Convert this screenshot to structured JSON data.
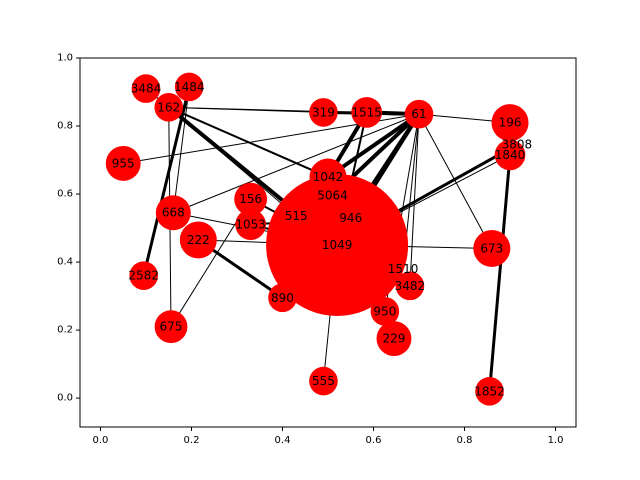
{
  "chart_data": {
    "type": "network-graph",
    "xlim": [
      -0.045,
      1.045
    ],
    "ylim": [
      -0.085,
      1.0
    ],
    "x_ticks": [
      0.0,
      0.2,
      0.4,
      0.6,
      0.8,
      1.0
    ],
    "y_ticks": [
      0.0,
      0.2,
      0.4,
      0.6,
      0.8,
      1.0
    ],
    "x_tick_labels": [
      "0.0",
      "0.2",
      "0.4",
      "0.6",
      "0.8",
      "1.0"
    ],
    "y_tick_labels": [
      "0.0",
      "0.2",
      "0.4",
      "0.6",
      "0.8",
      "1.0"
    ],
    "grid": false,
    "node_color": "#ff0000",
    "edge_color": "#000000",
    "nodes": [
      {
        "id": "1049",
        "x": 0.52,
        "y": 0.45,
        "size": 20
      },
      {
        "id": "946",
        "x": 0.55,
        "y": 0.53,
        "size": 2
      },
      {
        "id": "5064",
        "x": 0.51,
        "y": 0.595,
        "size": 2
      },
      {
        "id": "515",
        "x": 0.43,
        "y": 0.535,
        "size": 2
      },
      {
        "id": "1042",
        "x": 0.5,
        "y": 0.65,
        "size": 10
      },
      {
        "id": "61",
        "x": 0.7,
        "y": 0.835,
        "size": 6
      },
      {
        "id": "1515",
        "x": 0.585,
        "y": 0.84,
        "size": 7
      },
      {
        "id": "319",
        "x": 0.49,
        "y": 0.84,
        "size": 6
      },
      {
        "id": "196",
        "x": 0.9,
        "y": 0.81,
        "size": 10
      },
      {
        "id": "3808",
        "x": 0.915,
        "y": 0.745,
        "size": 2
      },
      {
        "id": "1840",
        "x": 0.9,
        "y": 0.715,
        "size": 7
      },
      {
        "id": "3484",
        "x": 0.1,
        "y": 0.91,
        "size": 6
      },
      {
        "id": "1484",
        "x": 0.195,
        "y": 0.915,
        "size": 6
      },
      {
        "id": "162",
        "x": 0.15,
        "y": 0.855,
        "size": 6
      },
      {
        "id": "955",
        "x": 0.05,
        "y": 0.69,
        "size": 9
      },
      {
        "id": "156",
        "x": 0.33,
        "y": 0.585,
        "size": 8
      },
      {
        "id": "1053",
        "x": 0.33,
        "y": 0.51,
        "size": 7
      },
      {
        "id": "668",
        "x": 0.16,
        "y": 0.545,
        "size": 9
      },
      {
        "id": "222",
        "x": 0.215,
        "y": 0.465,
        "size": 10
      },
      {
        "id": "2582",
        "x": 0.095,
        "y": 0.36,
        "size": 6
      },
      {
        "id": "890",
        "x": 0.4,
        "y": 0.295,
        "size": 6
      },
      {
        "id": "675",
        "x": 0.155,
        "y": 0.21,
        "size": 8
      },
      {
        "id": "555",
        "x": 0.49,
        "y": 0.05,
        "size": 6
      },
      {
        "id": "673",
        "x": 0.86,
        "y": 0.44,
        "size": 10
      },
      {
        "id": "1510",
        "x": 0.665,
        "y": 0.38,
        "size": 2
      },
      {
        "id": "3482",
        "x": 0.68,
        "y": 0.33,
        "size": 6
      },
      {
        "id": "950",
        "x": 0.625,
        "y": 0.255,
        "size": 6
      },
      {
        "id": "229",
        "x": 0.645,
        "y": 0.175,
        "size": 9
      },
      {
        "id": "1852",
        "x": 0.855,
        "y": 0.02,
        "size": 6
      }
    ],
    "edges": [
      {
        "s": "61",
        "t": "1049",
        "w": 4
      },
      {
        "s": "61",
        "t": "5064",
        "w": 4
      },
      {
        "s": "61",
        "t": "1042",
        "w": 4
      },
      {
        "s": "61",
        "t": "1515",
        "w": 4
      },
      {
        "s": "61",
        "t": "319",
        "w": 3
      },
      {
        "s": "61",
        "t": "196",
        "w": 1
      },
      {
        "s": "61",
        "t": "673",
        "w": 1
      },
      {
        "s": "61",
        "t": "3482",
        "w": 1
      },
      {
        "s": "61",
        "t": "1510",
        "w": 1
      },
      {
        "s": "61",
        "t": "950",
        "w": 1
      },
      {
        "s": "61",
        "t": "162",
        "w": 1
      },
      {
        "s": "61",
        "t": "955",
        "w": 1
      },
      {
        "s": "61",
        "t": "668",
        "w": 1
      },
      {
        "s": "61",
        "t": "946",
        "w": 4
      },
      {
        "s": "1515",
        "t": "1042",
        "w": 4
      },
      {
        "s": "1515",
        "t": "319",
        "w": 2
      },
      {
        "s": "1515",
        "t": "1049",
        "w": 2
      },
      {
        "s": "162",
        "t": "1049",
        "w": 4
      },
      {
        "s": "162",
        "t": "1042",
        "w": 2
      },
      {
        "s": "162",
        "t": "515",
        "w": 1
      },
      {
        "s": "162",
        "t": "319",
        "w": 1
      },
      {
        "s": "162",
        "t": "3484",
        "w": 1
      },
      {
        "s": "162",
        "t": "675",
        "w": 1
      },
      {
        "s": "1484",
        "t": "2582",
        "w": 3
      },
      {
        "s": "1484",
        "t": "668",
        "w": 1
      },
      {
        "s": "3808",
        "t": "1049",
        "w": 3
      },
      {
        "s": "1840",
        "t": "1049",
        "w": 1
      },
      {
        "s": "1840",
        "t": "1852",
        "w": 3
      },
      {
        "s": "156",
        "t": "1049",
        "w": 2
      },
      {
        "s": "1053",
        "t": "946",
        "w": 2
      },
      {
        "s": "1053",
        "t": "1049",
        "w": 2
      },
      {
        "s": "668",
        "t": "1049",
        "w": 1
      },
      {
        "s": "222",
        "t": "890",
        "w": 3
      },
      {
        "s": "222",
        "t": "1049",
        "w": 1
      },
      {
        "s": "675",
        "t": "156",
        "w": 1
      },
      {
        "s": "555",
        "t": "1049",
        "w": 1
      },
      {
        "s": "673",
        "t": "1049",
        "w": 1
      },
      {
        "s": "229",
        "t": "1049",
        "w": 1
      },
      {
        "s": "950",
        "t": "1049",
        "w": 1
      },
      {
        "s": "890",
        "t": "1049",
        "w": 1
      }
    ]
  }
}
